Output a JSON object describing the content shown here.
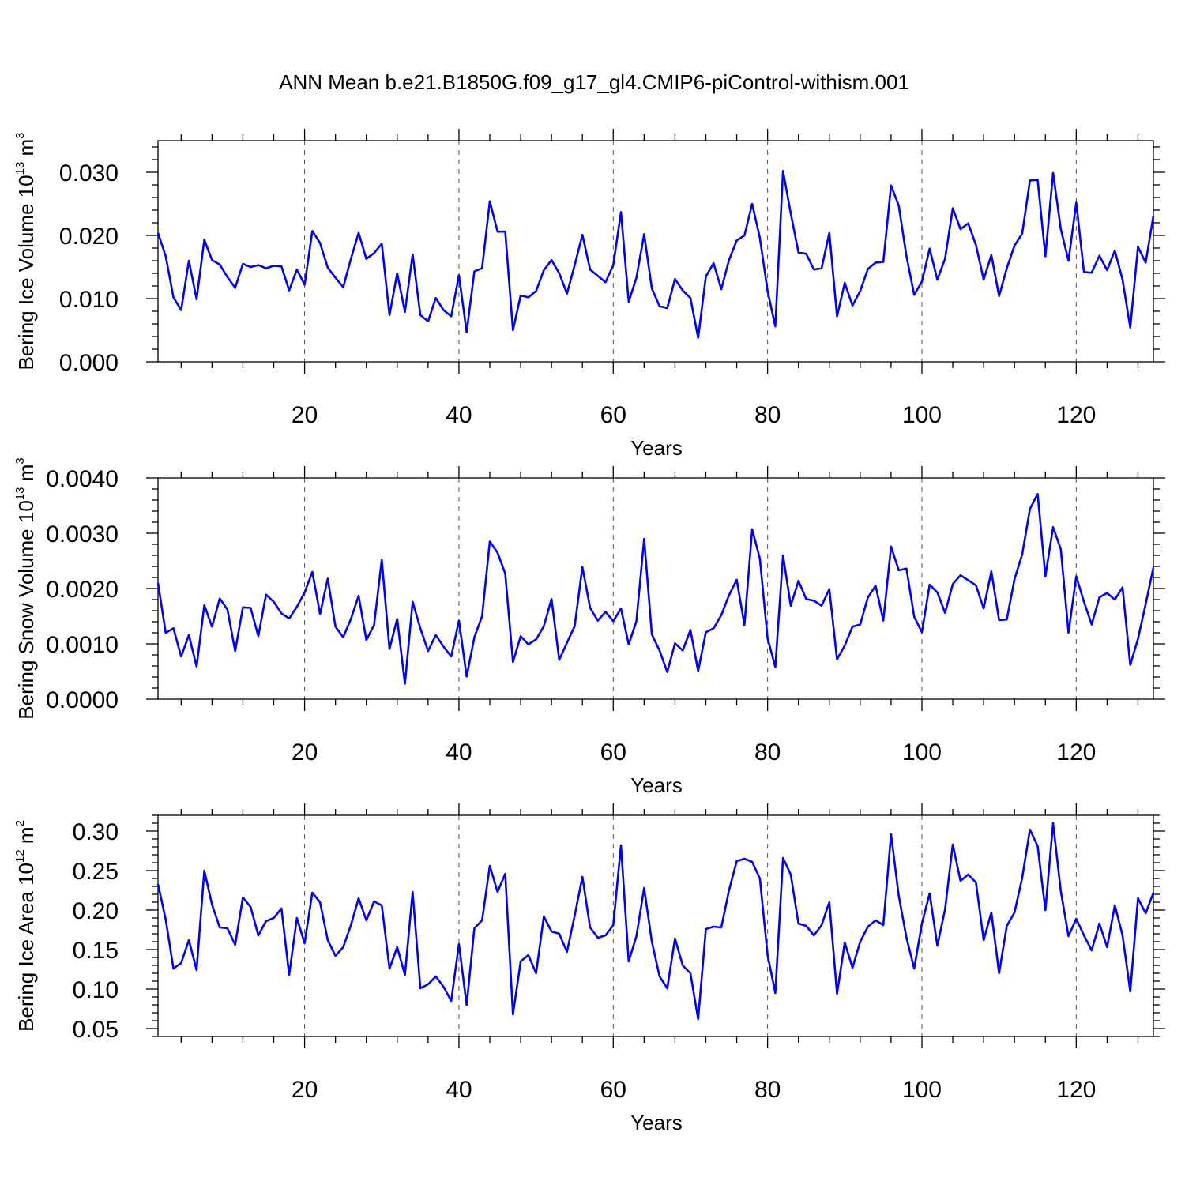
{
  "title": "ANN Mean b.e21.B1850G.f09_g17_gl4.CMIP6-piControl-withism.001",
  "colors": {
    "line": "#0000ff",
    "frame": "#000000",
    "grid": "#555555"
  },
  "chart_data": [
    {
      "type": "line",
      "ylabel": {
        "text": "Bering Ice Volume 10",
        "exp": "13",
        "unit": " m",
        "unit_exp": "3"
      },
      "xlabel": "Years",
      "xlim": [
        1,
        130
      ],
      "ylim": [
        0.0,
        0.035
      ],
      "xticks": [
        20,
        40,
        60,
        80,
        100,
        120
      ],
      "yticks": [
        0.0,
        0.01,
        0.02,
        0.03
      ],
      "ytick_labels": [
        "0.000",
        "0.010",
        "0.020",
        "0.030"
      ],
      "xtick_labels": [
        "20",
        "40",
        "60",
        "80",
        "100",
        "120"
      ],
      "x_minor_step": 4,
      "y_minor_step": 0.002,
      "grid": "vertical dashed at major x ticks",
      "series": [
        {
          "x_start": 1,
          "x_step": 1,
          "values": [
            0.0204,
            0.0167,
            0.0102,
            0.0082,
            0.016,
            0.0099,
            0.0193,
            0.0161,
            0.0154,
            0.0134,
            0.0117,
            0.0155,
            0.015,
            0.0153,
            0.0148,
            0.0152,
            0.0151,
            0.0113,
            0.0146,
            0.0122,
            0.0207,
            0.0188,
            0.0149,
            0.0133,
            0.0118,
            0.0163,
            0.0204,
            0.0163,
            0.0172,
            0.0187,
            0.0074,
            0.014,
            0.0079,
            0.017,
            0.0074,
            0.0064,
            0.0101,
            0.0082,
            0.0072,
            0.0137,
            0.0047,
            0.0143,
            0.0148,
            0.0254,
            0.0206,
            0.0206,
            0.005,
            0.0105,
            0.0102,
            0.0112,
            0.0145,
            0.0161,
            0.014,
            0.0108,
            0.0153,
            0.0201,
            0.0146,
            0.0136,
            0.0126,
            0.0153,
            0.0237,
            0.0095,
            0.0133,
            0.0202,
            0.0116,
            0.0088,
            0.0085,
            0.0131,
            0.0113,
            0.0101,
            0.0038,
            0.0135,
            0.0156,
            0.0115,
            0.0161,
            0.0192,
            0.02,
            0.025,
            0.0196,
            0.0112,
            0.0056,
            0.0302,
            0.0235,
            0.0173,
            0.0171,
            0.0146,
            0.0148,
            0.0204,
            0.0072,
            0.0125,
            0.0089,
            0.0112,
            0.0147,
            0.0157,
            0.0158,
            0.0279,
            0.0247,
            0.0167,
            0.0106,
            0.0127,
            0.0179,
            0.013,
            0.0163,
            0.0243,
            0.021,
            0.0219,
            0.0185,
            0.013,
            0.0169,
            0.0104,
            0.0148,
            0.0184,
            0.0203,
            0.0287,
            0.0288,
            0.0167,
            0.0299,
            0.021,
            0.016,
            0.0252,
            0.0142,
            0.0141,
            0.0168,
            0.0145,
            0.0176,
            0.013,
            0.0054,
            0.0182,
            0.0157,
            0.0231
          ]
        }
      ]
    },
    {
      "type": "line",
      "ylabel": {
        "text": "Bering Snow Volume 10",
        "exp": "13",
        "unit": " m",
        "unit_exp": "3"
      },
      "xlabel": "Years",
      "xlim": [
        1,
        130
      ],
      "ylim": [
        0.0,
        0.004
      ],
      "xticks": [
        20,
        40,
        60,
        80,
        100,
        120
      ],
      "yticks": [
        0.0,
        0.001,
        0.002,
        0.003,
        0.004
      ],
      "ytick_labels": [
        "0.0000",
        "0.0010",
        "0.0020",
        "0.0030",
        "0.0040"
      ],
      "xtick_labels": [
        "20",
        "40",
        "60",
        "80",
        "100",
        "120"
      ],
      "x_minor_step": 4,
      "y_minor_step": 0.0002,
      "grid": "vertical dashed at major x ticks",
      "series": [
        {
          "x_start": 1,
          "x_step": 1,
          "values": [
            0.0021,
            0.0012,
            0.00128,
            0.00077,
            0.00116,
            0.00059,
            0.0017,
            0.00131,
            0.00182,
            0.00162,
            0.00087,
            0.00166,
            0.00165,
            0.00114,
            0.00189,
            0.00176,
            0.00155,
            0.00146,
            0.00167,
            0.00193,
            0.0023,
            0.00154,
            0.00218,
            0.00131,
            0.00112,
            0.00145,
            0.00187,
            0.00107,
            0.00134,
            0.00252,
            0.00091,
            0.00145,
            0.00028,
            0.00176,
            0.00128,
            0.00087,
            0.00116,
            0.00095,
            0.00077,
            0.00142,
            0.00041,
            0.00112,
            0.0015,
            0.00285,
            0.00265,
            0.00227,
            0.00067,
            0.00114,
            0.00099,
            0.00108,
            0.00132,
            0.00181,
            0.00071,
            0.00102,
            0.00132,
            0.00239,
            0.00165,
            0.00142,
            0.00158,
            0.00141,
            0.00164,
            0.00099,
            0.00141,
            0.0029,
            0.00117,
            0.00088,
            0.00049,
            0.00101,
            0.00088,
            0.00125,
            0.00051,
            0.00121,
            0.00128,
            0.00152,
            0.00188,
            0.00216,
            0.00134,
            0.00307,
            0.00254,
            0.0011,
            0.00058,
            0.0026,
            0.00169,
            0.00214,
            0.00181,
            0.00178,
            0.00169,
            0.00199,
            0.00072,
            0.00097,
            0.00131,
            0.00135,
            0.00184,
            0.00205,
            0.00142,
            0.00276,
            0.00233,
            0.00236,
            0.00149,
            0.00121,
            0.00207,
            0.00193,
            0.00156,
            0.00208,
            0.00224,
            0.00215,
            0.00206,
            0.00164,
            0.00231,
            0.00143,
            0.00144,
            0.00217,
            0.00262,
            0.00344,
            0.00371,
            0.00222,
            0.00311,
            0.00271,
            0.0012,
            0.00222,
            0.00176,
            0.00135,
            0.00184,
            0.00192,
            0.0018,
            0.00202,
            0.00062,
            0.00109,
            0.00172,
            0.00238
          ]
        }
      ]
    },
    {
      "type": "line",
      "ylabel": {
        "text": "Bering Ice Area 10",
        "exp": "12",
        "unit": " m",
        "unit_exp": "2"
      },
      "xlabel": "Years",
      "xlim": [
        1,
        130
      ],
      "ylim": [
        0.04,
        0.32
      ],
      "xticks": [
        20,
        40,
        60,
        80,
        100,
        120
      ],
      "yticks": [
        0.05,
        0.1,
        0.15,
        0.2,
        0.25,
        0.3
      ],
      "ytick_labels": [
        "0.05",
        "0.10",
        "0.15",
        "0.20",
        "0.25",
        "0.30"
      ],
      "xtick_labels": [
        "20",
        "40",
        "60",
        "80",
        "100",
        "120"
      ],
      "x_minor_step": 4,
      "y_minor_step": 0.01,
      "grid": "vertical dashed at major x ticks",
      "series": [
        {
          "x_start": 1,
          "x_step": 1,
          "values": [
            0.233,
            0.188,
            0.126,
            0.133,
            0.162,
            0.124,
            0.25,
            0.207,
            0.178,
            0.177,
            0.156,
            0.216,
            0.204,
            0.168,
            0.186,
            0.19,
            0.202,
            0.118,
            0.19,
            0.158,
            0.222,
            0.21,
            0.162,
            0.142,
            0.153,
            0.181,
            0.215,
            0.187,
            0.211,
            0.206,
            0.126,
            0.153,
            0.118,
            0.223,
            0.101,
            0.106,
            0.116,
            0.103,
            0.085,
            0.157,
            0.08,
            0.177,
            0.187,
            0.256,
            0.223,
            0.246,
            0.068,
            0.135,
            0.143,
            0.12,
            0.192,
            0.173,
            0.17,
            0.147,
            0.193,
            0.242,
            0.178,
            0.165,
            0.168,
            0.181,
            0.282,
            0.135,
            0.167,
            0.228,
            0.16,
            0.116,
            0.101,
            0.164,
            0.13,
            0.12,
            0.062,
            0.176,
            0.179,
            0.178,
            0.225,
            0.262,
            0.265,
            0.261,
            0.24,
            0.143,
            0.095,
            0.266,
            0.245,
            0.183,
            0.18,
            0.168,
            0.181,
            0.21,
            0.094,
            0.159,
            0.127,
            0.16,
            0.179,
            0.187,
            0.181,
            0.296,
            0.218,
            0.165,
            0.126,
            0.183,
            0.221,
            0.155,
            0.201,
            0.283,
            0.237,
            0.245,
            0.235,
            0.162,
            0.197,
            0.12,
            0.18,
            0.197,
            0.241,
            0.302,
            0.281,
            0.2,
            0.31,
            0.224,
            0.167,
            0.189,
            0.168,
            0.149,
            0.183,
            0.153,
            0.206,
            0.168,
            0.097,
            0.215,
            0.196,
            0.222
          ]
        }
      ]
    }
  ]
}
